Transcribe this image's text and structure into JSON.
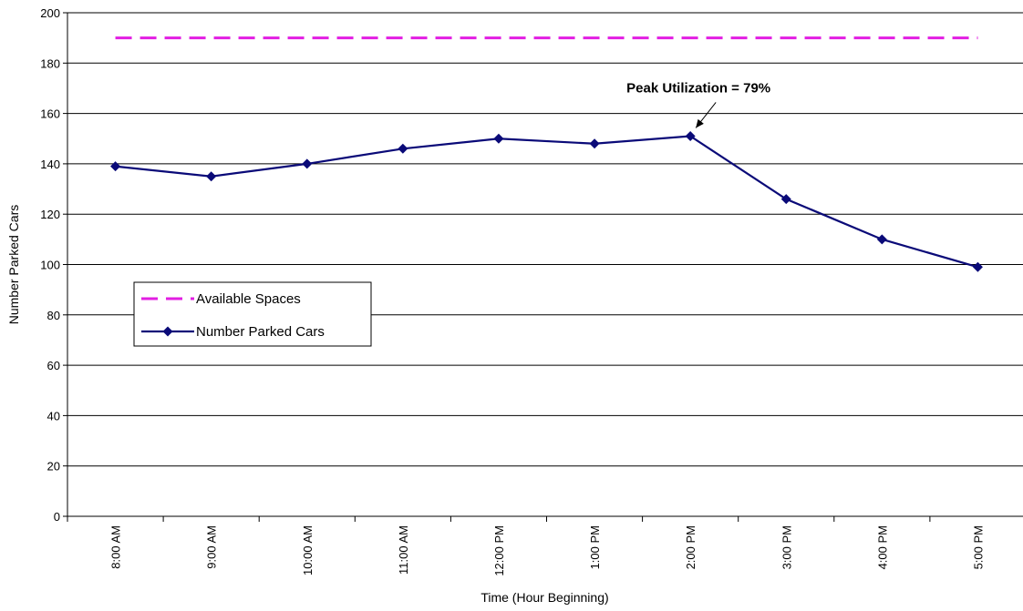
{
  "chart_data": {
    "type": "line",
    "title": "",
    "xlabel": "Time (Hour Beginning)",
    "ylabel": "Number Parked Cars",
    "ylim": [
      0,
      200
    ],
    "yticks": [
      0,
      20,
      40,
      60,
      80,
      100,
      120,
      140,
      160,
      180,
      200
    ],
    "categories": [
      "8:00 AM",
      "9:00 AM",
      "10:00 AM",
      "11:00 AM",
      "12:00 PM",
      "1:00 PM",
      "2:00 PM",
      "3:00 PM",
      "4:00 PM",
      "5:00 PM"
    ],
    "grid": true,
    "legend_position": "middle-left",
    "series": [
      {
        "name": "Available Spaces",
        "values": [
          190,
          190,
          190,
          190,
          190,
          190,
          190,
          190,
          190,
          190
        ],
        "color": "#e21ee2",
        "style": "dashed",
        "marker": "none"
      },
      {
        "name": "Number Parked Cars",
        "values": [
          139,
          135,
          140,
          146,
          150,
          148,
          151,
          126,
          110,
          99
        ],
        "color": "#0a0a78",
        "style": "solid",
        "marker": "diamond"
      }
    ],
    "annotations": [
      {
        "text": "Peak Utilization = 79%",
        "target_category": "2:00 PM",
        "target_value": 151
      }
    ]
  }
}
